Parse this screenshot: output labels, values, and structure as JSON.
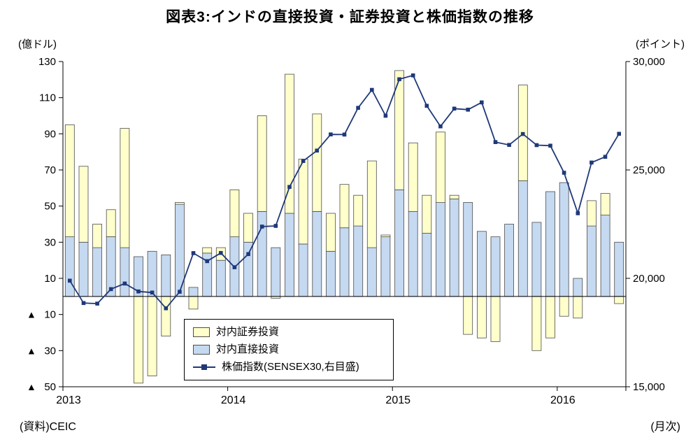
{
  "title": "図表3:インドの直接投資・証券投資と株価指数の推移",
  "source": "(資料)CEIC",
  "left_axis": {
    "caption": "(億ドル)",
    "ticks": [
      130,
      110,
      90,
      70,
      50,
      30,
      10,
      -10,
      -30,
      -50
    ],
    "labels": [
      "130",
      "110",
      "90",
      "70",
      "50",
      "30",
      "10",
      "▲ 10",
      "▲ 30",
      "▲ 50"
    ]
  },
  "right_axis": {
    "caption": "(ポイント)",
    "ticks": [
      30000,
      25000,
      20000,
      15000
    ],
    "labels": [
      "30,000",
      "25,000",
      "20,000",
      "15,000"
    ]
  },
  "x_axis": {
    "caption": "(月次)",
    "year_labels": [
      "2013",
      "2014",
      "2015",
      "2016"
    ],
    "year_month_index": [
      0,
      12,
      24,
      36
    ]
  },
  "legend": {
    "items": [
      {
        "label": "対内証券投資",
        "swatch": "portfolio"
      },
      {
        "label": "対内直接投資",
        "swatch": "direct"
      },
      {
        "label": "株価指数(SENSEX30,右目盛)",
        "swatch": "line"
      }
    ]
  },
  "colors": {
    "portfolio_fill": "#FFFFCC",
    "direct_fill": "#C5D9F1",
    "bar_stroke": "#4d4d4d",
    "line": "#1F3878",
    "axis": "#000000"
  },
  "chart_data": {
    "type": "bar",
    "note": "stacked bars on left axis (億ドル) plus line with square markers on right axis (points)",
    "x": [
      "2013-01",
      "2013-02",
      "2013-03",
      "2013-04",
      "2013-05",
      "2013-06",
      "2013-07",
      "2013-08",
      "2013-09",
      "2013-10",
      "2013-11",
      "2013-12",
      "2014-01",
      "2014-02",
      "2014-03",
      "2014-04",
      "2014-05",
      "2014-06",
      "2014-07",
      "2014-08",
      "2014-09",
      "2014-10",
      "2014-11",
      "2014-12",
      "2015-01",
      "2015-02",
      "2015-03",
      "2015-04",
      "2015-05",
      "2015-06",
      "2015-07",
      "2015-08",
      "2015-09",
      "2015-10",
      "2015-11",
      "2015-12",
      "2016-01",
      "2016-02",
      "2016-03",
      "2016-04",
      "2016-05"
    ],
    "left_ylim": [
      -50,
      130
    ],
    "right_ylim": [
      15000,
      30000
    ],
    "series": [
      {
        "name": "対内証券投資",
        "kind": "bar-stacked",
        "axis": "left",
        "values": [
          62,
          42,
          13,
          15,
          66,
          -48,
          -44,
          -22,
          1,
          -7,
          3,
          7,
          26,
          16,
          53,
          -1,
          77,
          47,
          54,
          21,
          24,
          17,
          48,
          1,
          66,
          38,
          21,
          39,
          2,
          -21,
          -23,
          -25,
          0,
          53,
          -30,
          -23,
          -11,
          -12,
          14,
          12,
          -4
        ]
      },
      {
        "name": "対内直接投資",
        "kind": "bar-stacked-base",
        "axis": "left",
        "values": [
          33,
          30,
          27,
          33,
          27,
          22,
          25,
          23,
          51,
          5,
          24,
          20,
          33,
          30,
          47,
          27,
          46,
          29,
          47,
          25,
          38,
          39,
          27,
          33,
          59,
          47,
          35,
          52,
          54,
          52,
          36,
          33,
          40,
          64,
          41,
          58,
          63,
          10,
          39,
          45,
          30
        ]
      },
      {
        "name": "株価指数(SENSEX30,右目盛)",
        "kind": "line",
        "axis": "right",
        "values": [
          19895,
          18862,
          18836,
          19504,
          19760,
          19396,
          19346,
          18620,
          19380,
          21165,
          20792,
          21171,
          20514,
          21120,
          22386,
          22418,
          24217,
          25414,
          25895,
          26638,
          26631,
          27866,
          28694,
          27499,
          29183,
          29362,
          27957,
          27011,
          27828,
          27781,
          28115,
          26283,
          26155,
          26657,
          26146,
          26118,
          24871,
          23002,
          25342,
          25607,
          26668
        ]
      }
    ],
    "grid": false,
    "legend_position": "inside-bottom-left"
  }
}
